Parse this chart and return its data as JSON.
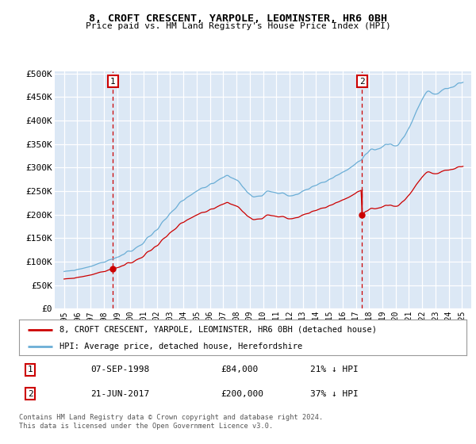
{
  "title": "8, CROFT CRESCENT, YARPOLE, LEOMINSTER, HR6 0BH",
  "subtitle": "Price paid vs. HM Land Registry's House Price Index (HPI)",
  "background_color": "#dce8f5",
  "ylim": [
    0,
    500000
  ],
  "yticks": [
    0,
    50000,
    100000,
    150000,
    200000,
    250000,
    300000,
    350000,
    400000,
    450000,
    500000
  ],
  "ytick_labels": [
    "£0",
    "£50K",
    "£100K",
    "£150K",
    "£200K",
    "£250K",
    "£300K",
    "£350K",
    "£400K",
    "£450K",
    "£500K"
  ],
  "sale1_date_num": 1998.69,
  "sale1_price": 84000,
  "sale2_date_num": 2017.47,
  "sale2_price": 200000,
  "hpi_color": "#6baed6",
  "price_color": "#cc0000",
  "legend_label1": "8, CROFT CRESCENT, YARPOLE, LEOMINSTER, HR6 0BH (detached house)",
  "legend_label2": "HPI: Average price, detached house, Herefordshire",
  "annotation1_date": "07-SEP-1998",
  "annotation1_price": "£84,000",
  "annotation1_pct": "21% ↓ HPI",
  "annotation2_date": "21-JUN-2017",
  "annotation2_price": "£200,000",
  "annotation2_pct": "37% ↓ HPI",
  "footer1": "Contains HM Land Registry data © Crown copyright and database right 2024.",
  "footer2": "This data is licensed under the Open Government Licence v3.0."
}
